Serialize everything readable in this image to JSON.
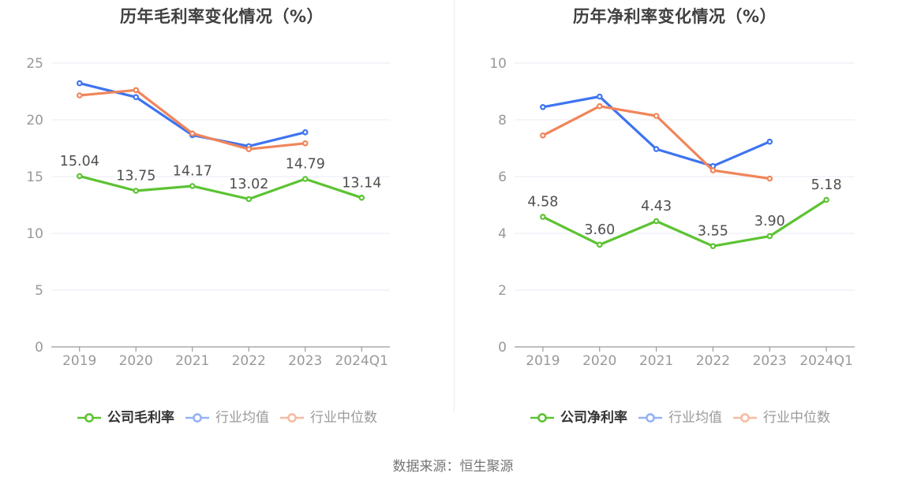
{
  "source_note": "数据来源：恒生聚源",
  "colors": {
    "company_green": "#5cc332",
    "industry_mean_blue": "#3e74f0",
    "industry_median_orange": "#f0855a",
    "grid_line": "#e7ebf4",
    "axis_line": "#9a9a9a",
    "axis_text": "#999999",
    "data_label": "#4f4f4f",
    "title_text": "#404040",
    "legend_active_text": "#333333",
    "legend_muted_text": "#999999"
  },
  "chart_data": [
    {
      "type": "line",
      "title": "历年毛利率变化情况（%）",
      "categories": [
        "2019",
        "2020",
        "2021",
        "2022",
        "2023",
        "2024Q1"
      ],
      "ylim": [
        0,
        25
      ],
      "yticks": [
        0,
        5,
        10,
        15,
        20,
        25
      ],
      "grid": true,
      "legend_position": "bottom",
      "series": [
        {
          "name": "公司毛利率",
          "color": "#5cc332",
          "values": [
            15.04,
            13.75,
            14.17,
            13.02,
            14.79,
            13.14
          ],
          "data_labels": [
            "15.04",
            "13.75",
            "14.17",
            "13.02",
            "14.79",
            "13.14"
          ],
          "legend_muted": false
        },
        {
          "name": "行业均值",
          "color": "#3e74f0",
          "values": [
            23.22,
            22.0,
            18.65,
            17.68,
            18.9,
            null
          ],
          "data_labels": null,
          "legend_muted": true
        },
        {
          "name": "行业中位数",
          "color": "#f0855a",
          "values": [
            22.15,
            22.62,
            18.8,
            17.42,
            17.93,
            null
          ],
          "data_labels": null,
          "legend_muted": true
        }
      ]
    },
    {
      "type": "line",
      "title": "历年净利率变化情况（%）",
      "categories": [
        "2019",
        "2020",
        "2021",
        "2022",
        "2023",
        "2024Q1"
      ],
      "ylim": [
        0,
        10
      ],
      "yticks": [
        0,
        2,
        4,
        6,
        8,
        10
      ],
      "grid": true,
      "legend_position": "bottom",
      "series": [
        {
          "name": "公司净利率",
          "color": "#5cc332",
          "values": [
            4.58,
            3.6,
            4.43,
            3.55,
            3.9,
            5.18
          ],
          "data_labels": [
            "4.58",
            "3.60",
            "4.43",
            "3.55",
            "3.90",
            "5.18"
          ],
          "legend_muted": false
        },
        {
          "name": "行业均值",
          "color": "#3e74f0",
          "values": [
            8.45,
            8.82,
            6.97,
            6.37,
            7.23,
            null
          ],
          "data_labels": null,
          "legend_muted": true
        },
        {
          "name": "行业中位数",
          "color": "#f0855a",
          "values": [
            7.45,
            8.48,
            8.14,
            6.22,
            5.93,
            null
          ],
          "data_labels": null,
          "legend_muted": true
        }
      ]
    }
  ]
}
